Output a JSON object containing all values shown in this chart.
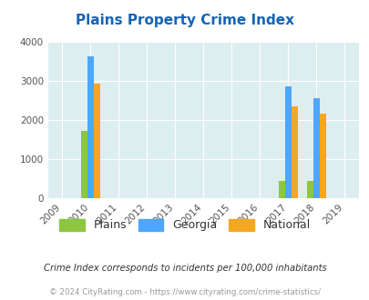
{
  "title": "Plains Property Crime Index",
  "title_color": "#1464b4",
  "years": [
    2009,
    2010,
    2011,
    2012,
    2013,
    2014,
    2015,
    2016,
    2017,
    2018,
    2019
  ],
  "data": {
    "2010": {
      "plains": 1720,
      "georgia": 3630,
      "national": 2940
    },
    "2017": {
      "plains": 430,
      "georgia": 2860,
      "national": 2360
    },
    "2018": {
      "plains": 430,
      "georgia": 2570,
      "national": 2170
    }
  },
  "colors": {
    "plains": "#8dc63f",
    "georgia": "#4da6ff",
    "national": "#f5a623"
  },
  "ylim": [
    0,
    4000
  ],
  "yticks": [
    0,
    1000,
    2000,
    3000,
    4000
  ],
  "bg_color": "#ddeef0",
  "legend_labels": [
    "Plains",
    "Georgia",
    "National"
  ],
  "note": "Crime Index corresponds to incidents per 100,000 inhabitants",
  "footer": "© 2024 CityRating.com - https://www.cityrating.com/crime-statistics/",
  "note_color": "#333333",
  "footer_color": "#999999"
}
